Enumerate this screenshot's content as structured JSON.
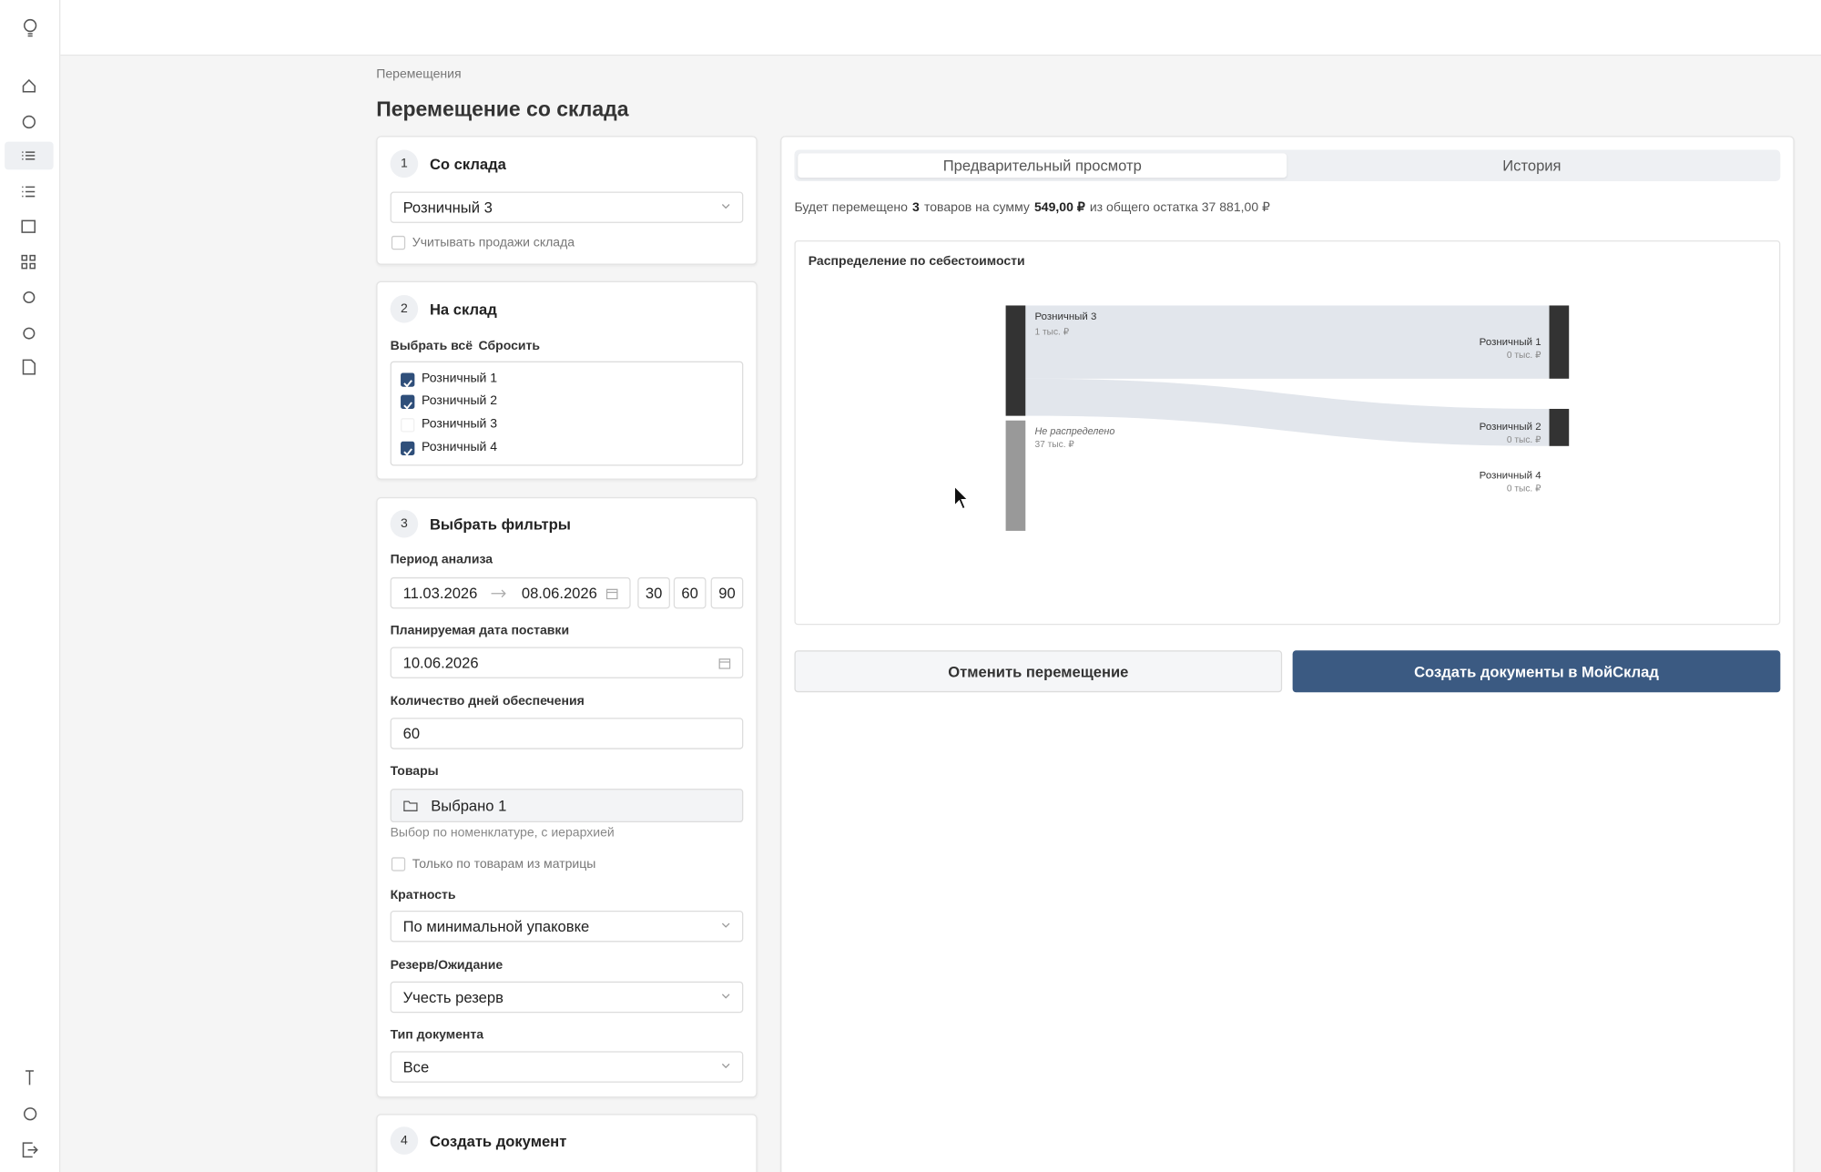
{
  "breadcrumb": "Перемещения",
  "title": "Перемещение со склада",
  "steps": [
    {
      "number": "1",
      "title": "Со склада"
    },
    {
      "number": "2",
      "title": "На склад"
    },
    {
      "number": "3",
      "title": "Выбрать фильтры"
    },
    {
      "number": "4",
      "title": "Создать документ"
    }
  ],
  "source": {
    "value": "Розничный 3",
    "consider_sales": {
      "label": "Учитывать продажи склада",
      "checked": false
    }
  },
  "target": {
    "select_all": "Выбрать всё",
    "reset": "Сбросить",
    "stores": [
      {
        "label": "Розничный 1",
        "checked": true
      },
      {
        "label": "Розничный 2",
        "checked": true
      },
      {
        "label": "Розничный 3",
        "checked": false
      },
      {
        "label": "Розничный 4",
        "checked": true
      }
    ]
  },
  "filters": {
    "period": {
      "label": "Период анализа",
      "from": "11.03.2026",
      "to": "08.06.2026",
      "presets": [
        "30",
        "60",
        "90"
      ]
    },
    "delivery_date": {
      "label": "Планируемая дата поставки",
      "value": "10.06.2026"
    },
    "days": {
      "label": "Количество дней обеспечения",
      "value": "60"
    },
    "goods": {
      "label": "Товары",
      "value": "Выбрано 1",
      "hint": "Выбор по номенклатуре, с иерархией"
    },
    "matrix_only": {
      "label": "Только по товарам из матрицы",
      "checked": false
    },
    "multiplicity": {
      "label": "Кратность",
      "value": "По минимальной упаковке"
    },
    "reserve": {
      "label": "Резерв/Ожидание",
      "value": "Учесть резерв"
    },
    "doc_type": {
      "label": "Тип документа",
      "value": "Все"
    }
  },
  "preview": {
    "tabs": [
      {
        "label": "Предварительный просмотр",
        "active": true
      },
      {
        "label": "История",
        "active": false
      }
    ],
    "summary": [
      {
        "text": "Будет перемещено",
        "bold": false
      },
      {
        "text": "3",
        "bold": true
      },
      {
        "text": "товаров на сумму",
        "bold": false
      },
      {
        "text": "549,00 ₽",
        "bold": true
      },
      {
        "text": "из общего остатка 37 881,00 ₽",
        "bold": false
      }
    ],
    "chart": {
      "title": "Распределение по себестоимости",
      "nodes": [
        {
          "label": "Розничный 3",
          "value": "1 тыс. ₽"
        },
        {
          "label": "Не распределено",
          "value": "37 тыс. ₽"
        },
        {
          "label": "Розничный 1",
          "value": "0 тыс. ₽"
        },
        {
          "label": "Розничный 2",
          "value": "0 тыс. ₽"
        },
        {
          "label": "Розничный 4",
          "value": "0 тыс. ₽"
        }
      ]
    },
    "actions": {
      "cancel": "Отменить перемещение",
      "create": "Создать документы в МойСклад"
    }
  }
}
